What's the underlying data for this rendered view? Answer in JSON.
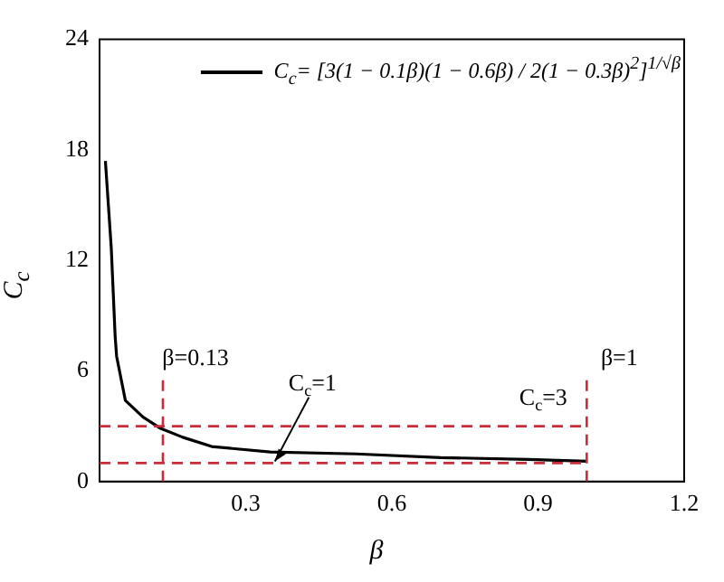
{
  "chart_data": {
    "type": "line",
    "xlabel": "β",
    "ylabel": "C$_{c}$",
    "x": [
      0.012,
      0.024,
      0.032,
      0.035,
      0.053,
      0.089,
      0.124,
      0.171,
      0.23,
      0.35,
      0.526,
      0.7,
      0.88,
      1.0
    ],
    "series": [
      {
        "name": "C$_{c}$= [3(1 − 0.1β)(1 − 0.6β) / 2(1 − 0.3β)$^{2}$]$^{1/√β}$",
        "color": "#000000",
        "values": [
          17.4,
          12.7,
          7.9,
          6.8,
          4.4,
          3.5,
          2.9,
          2.4,
          1.9,
          1.6,
          1.5,
          1.3,
          1.2,
          1.1
        ]
      }
    ],
    "xlim": [
      0,
      1.2
    ],
    "xticks": [
      {
        "value": 0,
        "label": null
      },
      0.3,
      0.6,
      0.9,
      1.2
    ],
    "ylim": [
      0,
      24
    ],
    "yticks": [
      0,
      6,
      12,
      18,
      24
    ],
    "ref_lines": [
      {
        "axis": "y",
        "value": 3,
        "label": "C$_{c}$=3",
        "color": "#cc2a36",
        "line_style": "dashed"
      },
      {
        "axis": "y",
        "value": 1,
        "label": "C$_{c}$=1",
        "color": "#cc2a36",
        "line_style": "dashed"
      },
      {
        "axis": "x",
        "value": 0.13,
        "label": "β=0.13",
        "color": "#cc2a36",
        "line_style": "dashed"
      },
      {
        "axis": "x",
        "value": 1,
        "label": "β=1",
        "color": "#cc2a36",
        "line_style": "dashed"
      }
    ],
    "grid": false,
    "legend": "top right",
    "marker": "none",
    "line_style": "solid"
  }
}
